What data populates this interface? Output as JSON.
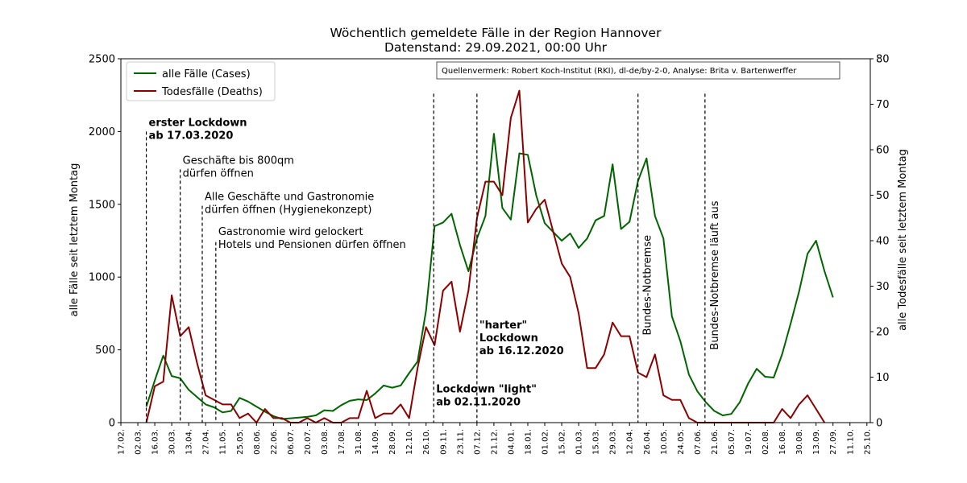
{
  "chart_data": {
    "type": "line",
    "title_line1": "Wöchentlich gemeldete Fälle in der Region Hannover",
    "title_line2": "Datenstand: 29.09.2021, 00:00 Uhr",
    "ylabel_left": "alle Fälle seit letztem Montag",
    "ylabel_right": "alle Todesfälle seit letztem Montag",
    "ylim_left": [
      0,
      2500
    ],
    "ylim_right": [
      0,
      80
    ],
    "yticks_left": [
      "0",
      "500",
      "1000",
      "1500",
      "2000",
      "2500"
    ],
    "yticks_right": [
      "0",
      "10",
      "20",
      "30",
      "40",
      "50",
      "60",
      "70",
      "80"
    ],
    "x_tick_labels": [
      "17.02.",
      "02.03.",
      "16.03.",
      "30.03.",
      "13.04.",
      "27.04.",
      "11.05.",
      "25.05.",
      "08.06.",
      "22.06.",
      "06.07.",
      "20.07.",
      "03.08.",
      "17.08.",
      "31.08.",
      "14.09.",
      "28.09.",
      "12.10.",
      "26.10.",
      "09.11.",
      "23.11.",
      "07.12.",
      "21.12.",
      "04.01.",
      "18.01.",
      "01.02.",
      "15.02.",
      "01.03.",
      "15.03.",
      "29.03.",
      "12.04.",
      "26.04.",
      "10.05.",
      "24.05.",
      "07.06.",
      "21.06.",
      "05.07.",
      "19.07.",
      "02.08.",
      "16.08.",
      "30.08.",
      "13.09.",
      "27.09.",
      "11.10.",
      "25.10."
    ],
    "grid": false,
    "legend_position": "top-left",
    "source_note": "Quellenvermerk: Robert Koch-Institut (RKI), dl-de/by-2-0, Analyse: Brita v. Bartenwerffer",
    "series": [
      {
        "name": "alle Fälle (Cases)",
        "axis": "left",
        "color": "#006400",
        "start_week_index": 3,
        "values": [
          110,
          290,
          460,
          320,
          305,
          225,
          175,
          125,
          105,
          70,
          80,
          170,
          145,
          110,
          75,
          45,
          25,
          30,
          35,
          40,
          50,
          85,
          80,
          120,
          150,
          160,
          155,
          200,
          255,
          240,
          255,
          340,
          420,
          770,
          1350,
          1375,
          1435,
          1220,
          1040,
          1265,
          1420,
          1985,
          1475,
          1395,
          1850,
          1840,
          1560,
          1370,
          1310,
          1250,
          1300,
          1200,
          1265,
          1390,
          1420,
          1775,
          1330,
          1380,
          1660,
          1815,
          1420,
          1265,
          730,
          560,
          330,
          215,
          140,
          80,
          50,
          60,
          140,
          270,
          370,
          315,
          310,
          470,
          680,
          900,
          1160,
          1250,
          1040,
          860
        ]
      },
      {
        "name": "Todesfälle (Deaths)",
        "axis": "right",
        "color": "#8b0000",
        "start_week_index": 3,
        "values": [
          0,
          8,
          9,
          28,
          19,
          21,
          13,
          6,
          5,
          4,
          4,
          1,
          2,
          0,
          3,
          1,
          1,
          0,
          0,
          1,
          0,
          1,
          0,
          0,
          1,
          1,
          7,
          1,
          2,
          2,
          4,
          1,
          12,
          21,
          17,
          29,
          31,
          20,
          29,
          45,
          53,
          53,
          50,
          67,
          73,
          44,
          47,
          49,
          42,
          35,
          32,
          24,
          12,
          12,
          15,
          22,
          19,
          19,
          11,
          10,
          15,
          6,
          5,
          5,
          1,
          0,
          0,
          0,
          0,
          0,
          0,
          0,
          0,
          0,
          0,
          3,
          1,
          4,
          6,
          3,
          0
        ]
      }
    ],
    "event_lines": [
      {
        "week_index": 3,
        "label_lines": [
          "erster Lockdown",
          "ab 17.03.2020"
        ],
        "bold": true,
        "label_y": 1950,
        "vertical": false,
        "line_top": 2000
      },
      {
        "week_index": 7,
        "label_lines": [
          "Geschäfte bis 800qm",
          "dürfen öffnen"
        ],
        "bold": false,
        "label_y": 1690,
        "vertical": false,
        "line_top": 1740
      },
      {
        "week_index": 9.6,
        "label_lines": [
          "Alle Geschäfte und Gastronomie",
          "dürfen öffnen (Hygienekonzept)"
        ],
        "bold": false,
        "label_y": 1440,
        "vertical": false,
        "line_top": 1490
      },
      {
        "week_index": 11.2,
        "label_lines": [
          "Gastronomie wird gelockert",
          "Hotels und Pensionen dürfen öffnen"
        ],
        "bold": false,
        "label_y": 1200,
        "vertical": false,
        "line_top": 1240
      },
      {
        "week_index": 36.9,
        "label_lines": [
          "Lockdown \"light\"",
          "ab 02.11.2020"
        ],
        "bold": true,
        "label_y": 120,
        "vertical": false,
        "line_top": 2260
      },
      {
        "week_index": 42,
        "label_lines": [
          "\"harter\"",
          "Lockdown",
          "ab 16.12.2020"
        ],
        "bold": true,
        "label_y": 470,
        "vertical": false,
        "line_top": 2260
      },
      {
        "week_index": 61,
        "label_lines": [
          "Bundes-Notbremse"
        ],
        "bold": false,
        "label_y": 600,
        "vertical": true,
        "line_top": 2260
      },
      {
        "week_index": 68.9,
        "label_lines": [
          "Bundes-Notbremse läuft aus"
        ],
        "bold": false,
        "label_y": 500,
        "vertical": true,
        "line_top": 2260
      }
    ]
  }
}
